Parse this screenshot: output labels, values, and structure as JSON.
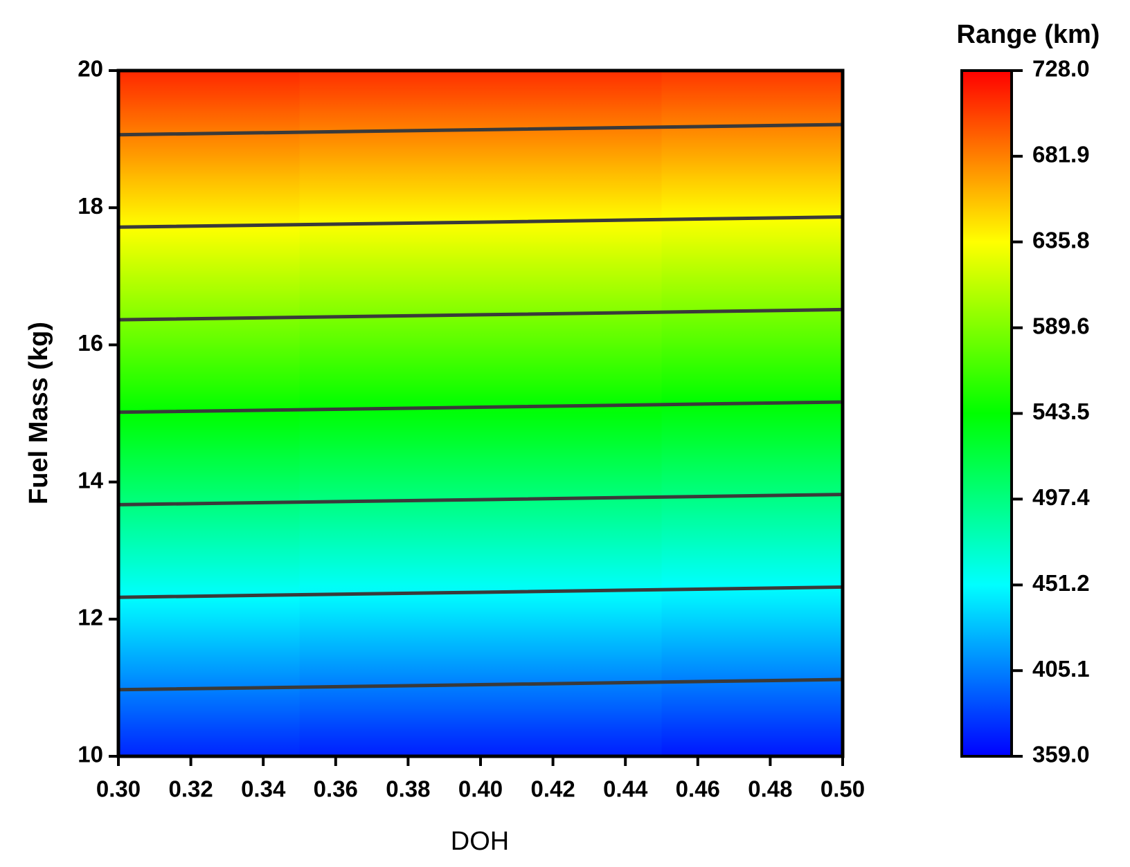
{
  "chart_data": {
    "type": "contour",
    "colorbar_title": "Range (km)",
    "x_label": "DOH",
    "y_label": "Fuel Mass (kg)",
    "x": [
      0.3,
      0.4,
      0.5
    ],
    "y": [
      10,
      11,
      12,
      13,
      14,
      15,
      16,
      17,
      18,
      19,
      20
    ],
    "z": [
      [
        371.9,
        369.4,
        366.8
      ],
      [
        406.1,
        403.6,
        401.0
      ],
      [
        440.3,
        437.8,
        435.2
      ],
      [
        474.5,
        472.0,
        469.4
      ],
      [
        508.7,
        506.2,
        503.6
      ],
      [
        542.9,
        540.4,
        537.8
      ],
      [
        577.1,
        574.6,
        572.0
      ],
      [
        611.3,
        608.8,
        606.2
      ],
      [
        645.5,
        643.0,
        640.4
      ],
      [
        679.7,
        677.2,
        674.6
      ],
      [
        713.9,
        711.4,
        708.8
      ]
    ],
    "xlim": [
      0.3,
      0.5
    ],
    "ylim": [
      10,
      20
    ],
    "xticks": [
      {
        "value": 0.3,
        "label": "0.30"
      },
      {
        "value": 0.32,
        "label": "0.32"
      },
      {
        "value": 0.34,
        "label": "0.34"
      },
      {
        "value": 0.36,
        "label": "0.36"
      },
      {
        "value": 0.38,
        "label": "0.38"
      },
      {
        "value": 0.4,
        "label": "0.40"
      },
      {
        "value": 0.42,
        "label": "0.42"
      },
      {
        "value": 0.44,
        "label": "0.44"
      },
      {
        "value": 0.46,
        "label": "0.46"
      },
      {
        "value": 0.48,
        "label": "0.48"
      },
      {
        "value": 0.5,
        "label": "0.50"
      }
    ],
    "yticks": [
      10,
      12,
      14,
      16,
      18,
      20
    ],
    "zlim": [
      359,
      728
    ],
    "zticks": [
      {
        "value": 359,
        "label": "359.0"
      },
      405.1,
      451.2,
      497.4,
      543.5,
      589.6,
      635.8,
      681.9,
      {
        "value": 728,
        "label": "728.0"
      }
    ],
    "colormap": [
      "#0000ff",
      "#00ffff",
      "#00ff00",
      "#ffff00",
      "#ff0000"
    ],
    "contour_color": "#3a3a3a"
  }
}
